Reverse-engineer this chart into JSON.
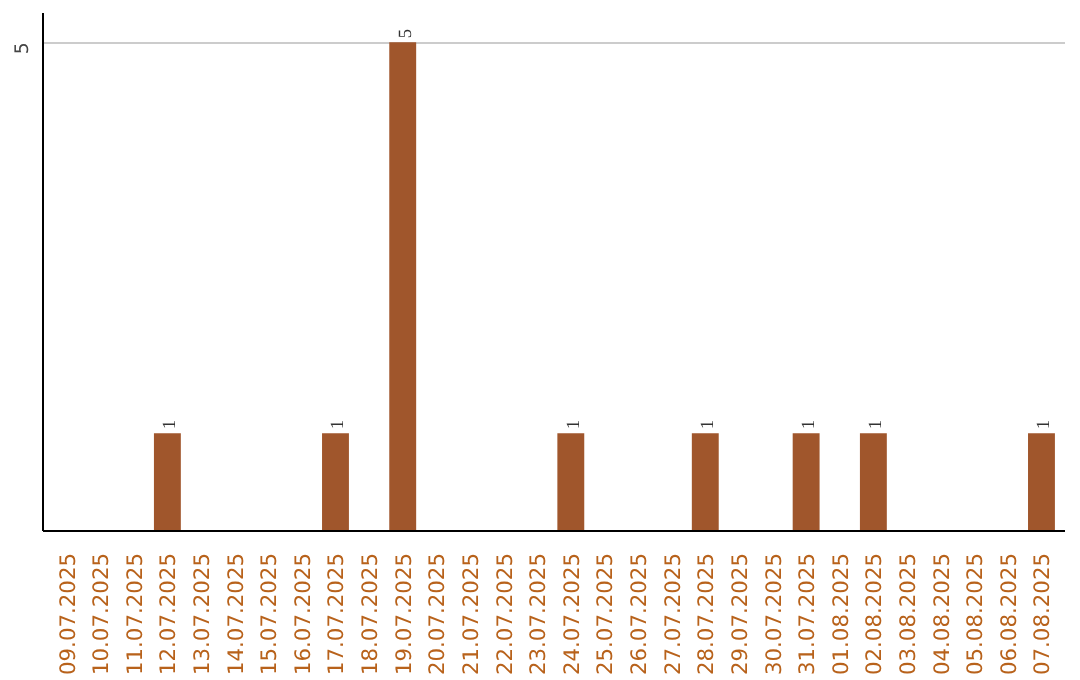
{
  "chart_data": {
    "type": "bar",
    "categories": [
      "09.07.2025",
      "10.07.2025",
      "11.07.2025",
      "12.07.2025",
      "13.07.2025",
      "14.07.2025",
      "15.07.2025",
      "16.07.2025",
      "17.07.2025",
      "18.07.2025",
      "19.07.2025",
      "20.07.2025",
      "21.07.2025",
      "22.07.2025",
      "23.07.2025",
      "24.07.2025",
      "25.07.2025",
      "26.07.2025",
      "27.07.2025",
      "28.07.2025",
      "29.07.2025",
      "30.07.2025",
      "31.07.2025",
      "01.08.2025",
      "02.08.2025",
      "03.08.2025",
      "04.08.2025",
      "05.08.2025",
      "06.08.2025",
      "07.08.2025"
    ],
    "values": [
      0,
      0,
      0,
      1,
      0,
      0,
      0,
      0,
      1,
      0,
      5,
      0,
      0,
      0,
      0,
      1,
      0,
      0,
      0,
      1,
      0,
      0,
      1,
      0,
      1,
      0,
      0,
      0,
      0,
      1
    ],
    "value_labels": [
      null,
      null,
      null,
      "1",
      null,
      null,
      null,
      null,
      "1",
      null,
      "5",
      null,
      null,
      null,
      null,
      "1",
      null,
      null,
      null,
      "1",
      null,
      null,
      "1",
      null,
      "1",
      null,
      null,
      null,
      null,
      "1"
    ],
    "color": "#a0562c",
    "ylim": [
      0,
      5.3
    ],
    "yticks": [
      5
    ],
    "grid": "y"
  }
}
